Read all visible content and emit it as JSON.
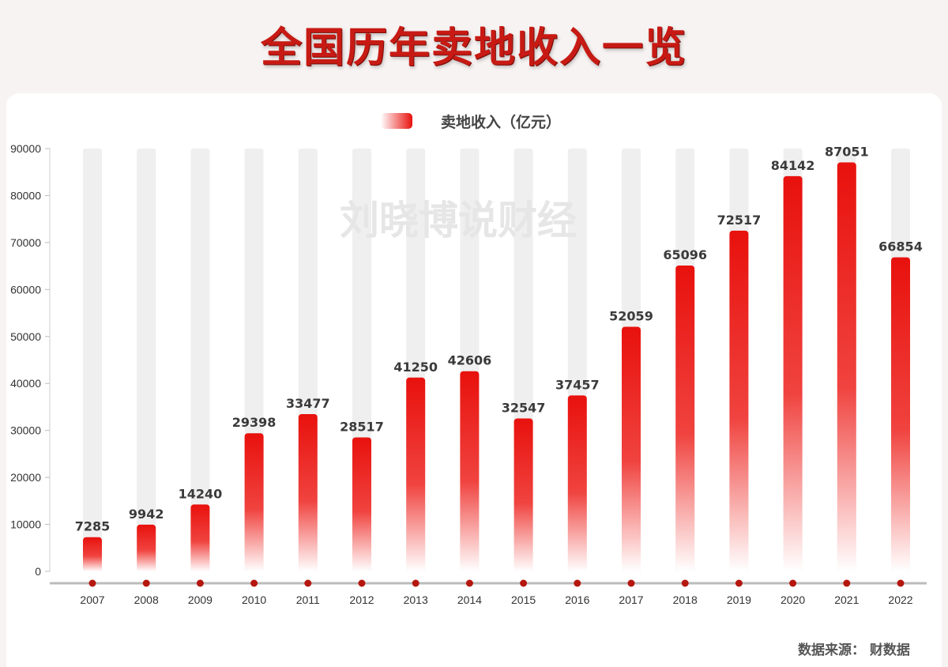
{
  "title": "全国历年卖地收入一览",
  "watermark": "刘晓博说财经",
  "source": "数据来源：    财数据",
  "colors": {
    "bar_top": "#e8110d",
    "bar_bottom": "#ffffff",
    "background_bar": "#efefef",
    "marker": "#b5170f",
    "axis": "#bbbbbb"
  },
  "chart_data": {
    "type": "bar",
    "categories": [
      "2007",
      "2008",
      "2009",
      "2010",
      "2011",
      "2012",
      "2013",
      "2014",
      "2015",
      "2016",
      "2017",
      "2018",
      "2019",
      "2020",
      "2021",
      "2022"
    ],
    "series": [
      {
        "name": "卖地收入（亿元）",
        "values": [
          7285,
          9942,
          14240,
          29398,
          33477,
          28517,
          41250,
          42606,
          32547,
          37457,
          52059,
          65096,
          72517,
          84142,
          87051,
          66854
        ]
      }
    ],
    "ylim": [
      0,
      90000
    ],
    "yticks": [
      0,
      10000,
      20000,
      30000,
      40000,
      50000,
      60000,
      70000,
      80000,
      90000
    ],
    "legend": "top-center",
    "grid": false
  }
}
